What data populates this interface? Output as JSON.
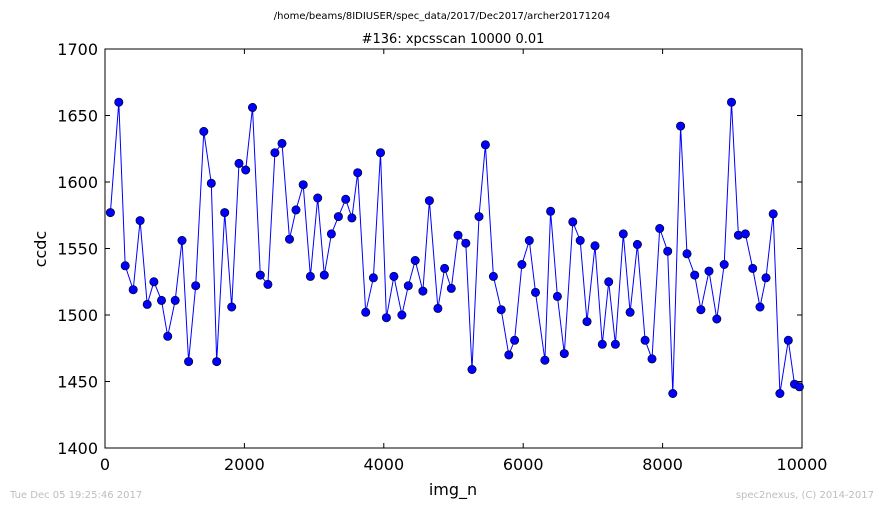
{
  "figure": {
    "suptitle": "/home/beams/8IDIUSER/spec_data/2017/Dec2017/archer20171204",
    "footer_left": "Tue Dec 05 19:25:46 2017",
    "footer_right": "spec2nexus, (C) 2014-2017"
  },
  "chart_data": {
    "type": "line",
    "title": "#136: xpcsscan 10000 0.01",
    "xlabel": "img_n",
    "ylabel": "ccdc",
    "xlim": [
      0,
      10000
    ],
    "ylim": [
      1400,
      1700
    ],
    "xticks": [
      0,
      2000,
      4000,
      6000,
      8000,
      10000
    ],
    "yticks": [
      1400,
      1450,
      1500,
      1550,
      1600,
      1650,
      1700
    ],
    "grid": false,
    "markers": "circle",
    "series": [
      {
        "color": "#0000ff",
        "x": [
          77,
          198,
          290,
          404,
          503,
          605,
          701,
          810,
          900,
          1007,
          1105,
          1200,
          1301,
          1418,
          1525,
          1603,
          1717,
          1818,
          1922,
          2018,
          2116,
          2228,
          2337,
          2437,
          2540,
          2647,
          2741,
          2843,
          2947,
          3051,
          3146,
          3248,
          3348,
          3453,
          3542,
          3625,
          3741,
          3851,
          3952,
          4037,
          4145,
          4259,
          4351,
          4450,
          4561,
          4654,
          4776,
          4872,
          4969,
          5064,
          5176,
          5266,
          5366,
          5458,
          5572,
          5684,
          5794,
          5877,
          5981,
          6087,
          6177,
          6311,
          6393,
          6491,
          6590,
          6712,
          6818,
          6915,
          7030,
          7135,
          7227,
          7323,
          7436,
          7533,
          7639,
          7749,
          7848,
          7958,
          8073,
          8147,
          8258,
          8350,
          8460,
          8549,
          8666,
          8778,
          8884,
          8988,
          9087,
          9188,
          9292,
          9398,
          9484,
          9587,
          9683,
          9804,
          9893,
          9963
        ],
        "y": [
          1577,
          1660,
          1537,
          1519,
          1571,
          1508,
          1525,
          1511,
          1484,
          1511,
          1556,
          1465,
          1522,
          1638,
          1599,
          1465,
          1577,
          1506,
          1614,
          1609,
          1656,
          1530,
          1523,
          1622,
          1629,
          1557,
          1579,
          1598,
          1529,
          1588,
          1530,
          1561,
          1574,
          1587,
          1573,
          1607,
          1502,
          1528,
          1622,
          1498,
          1529,
          1500,
          1522,
          1541,
          1518,
          1586,
          1505,
          1535,
          1520,
          1560,
          1554,
          1459,
          1574,
          1628,
          1529,
          1504,
          1470,
          1481,
          1538,
          1556,
          1517,
          1466,
          1578,
          1514,
          1471,
          1570,
          1556,
          1495,
          1552,
          1478,
          1525,
          1478,
          1561,
          1502,
          1553,
          1481,
          1467,
          1565,
          1548,
          1441,
          1642,
          1546,
          1530,
          1504,
          1533,
          1497,
          1538,
          1660,
          1560,
          1561,
          1535,
          1506,
          1528,
          1576,
          1441,
          1481,
          1448,
          1446
        ]
      }
    ]
  }
}
